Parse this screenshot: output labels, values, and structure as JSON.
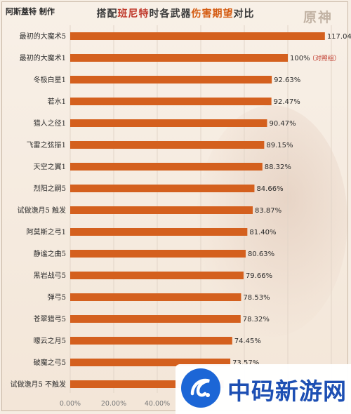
{
  "credit": "阿斯蓋特 制作",
  "title_parts": [
    {
      "text": "搭配",
      "style": "plain"
    },
    {
      "text": "班尼特",
      "style": "red"
    },
    {
      "text": "时各武器",
      "style": "plain"
    },
    {
      "text": "伤害期望",
      "style": "orange"
    },
    {
      "text": "对比",
      "style": "plain"
    }
  ],
  "logo_text": "原神",
  "reference_note": "（对照组）",
  "watermark_text": "中码新游网",
  "chart_data": {
    "type": "bar",
    "orientation": "horizontal",
    "title": "搭配班尼特时各武器伤害期望对比",
    "bar_color": "#d4601e",
    "xlim": [
      0,
      100
    ],
    "x_ticks": [
      "0.00%",
      "20.00%",
      "40.00%"
    ],
    "grid": true,
    "categories": [
      "最初的大魔术5",
      "最初的大魔术1",
      "冬极白星1",
      "若水1",
      "猎人之径1",
      "飞雷之弦振1",
      "天空之翼1",
      "烈阳之嗣5",
      "试做澹月5 触发",
      "阿莫斯之弓1",
      "静谧之曲5",
      "黑岩战弓5",
      "弹弓5",
      "苍翠猎弓5",
      "曚云之月5",
      "破魔之弓5",
      "试做澹月5 不触发"
    ],
    "values": [
      117.04,
      100,
      92.63,
      92.47,
      90.47,
      89.15,
      88.32,
      84.66,
      83.87,
      81.4,
      80.63,
      79.66,
      78.53,
      78.32,
      74.45,
      73.57,
      70.5
    ],
    "value_labels": [
      "117.04%",
      "100%",
      "92.63%",
      "92.47%",
      "90.47%",
      "89.15%",
      "88.32%",
      "84.66%",
      "83.87%",
      "81.40%",
      "80.63%",
      "79.66%",
      "78.53%",
      "78.32%",
      "74.45%",
      "73.57%",
      ""
    ],
    "reference_index": 1
  }
}
